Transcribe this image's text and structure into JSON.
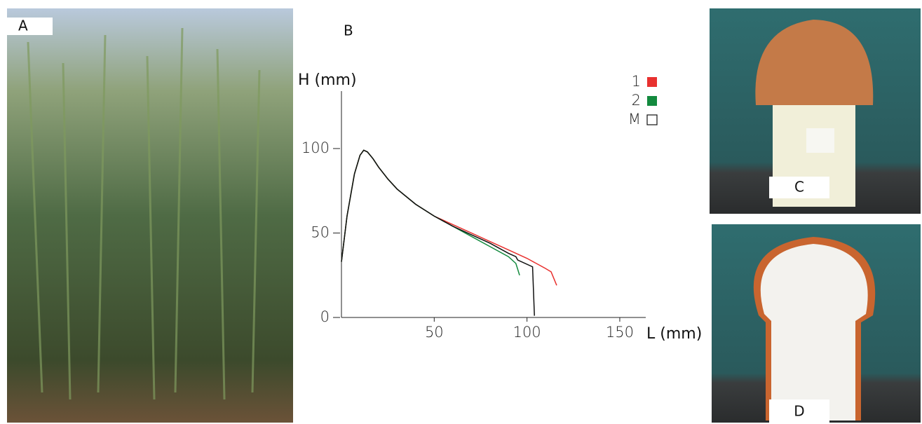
{
  "panel_labels": [
    "A",
    "B",
    "C",
    "D"
  ],
  "chart_data": {
    "type": "line",
    "ylabel": "H (mm)",
    "xlabel": "L (mm)",
    "xlim": [
      0,
      164
    ],
    "ylim": [
      0,
      134
    ],
    "xticks": [
      50,
      100,
      150
    ],
    "yticks": [
      0,
      50,
      100
    ],
    "series": [
      {
        "name": "1",
        "color": "#e8312f",
        "legend_filled": true,
        "x": [
          0,
          3,
          7,
          10,
          12,
          14,
          17,
          20,
          25,
          30,
          40,
          50,
          60,
          70,
          80,
          90,
          100,
          110,
          113,
          116
        ],
        "values": [
          33,
          60,
          85,
          96,
          99,
          98,
          94,
          89,
          82,
          76,
          67,
          60,
          55,
          50,
          45,
          40,
          35,
          29,
          27,
          19
        ]
      },
      {
        "name": "2",
        "color": "#138a3e",
        "legend_filled": true,
        "x": [
          0,
          3,
          7,
          10,
          12,
          14,
          17,
          20,
          25,
          30,
          40,
          50,
          60,
          70,
          80,
          90,
          94,
          96
        ],
        "values": [
          33,
          60,
          85,
          96,
          99,
          98,
          94,
          89,
          82,
          76,
          67,
          60,
          54,
          48,
          42,
          36,
          32,
          25
        ]
      },
      {
        "name": "M",
        "color": "#111111",
        "legend_filled": false,
        "x": [
          0,
          3,
          7,
          10,
          12,
          14,
          17,
          20,
          25,
          30,
          40,
          50,
          60,
          70,
          80,
          90,
          94,
          95,
          103,
          104
        ],
        "values": [
          33,
          60,
          85,
          96,
          99,
          98,
          94,
          89,
          82,
          76,
          67,
          60,
          54,
          49,
          44,
          38,
          36,
          34,
          30,
          1
        ]
      }
    ]
  }
}
